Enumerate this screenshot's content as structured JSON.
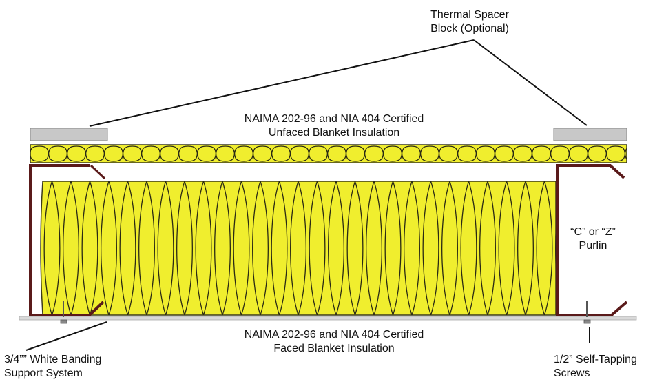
{
  "labels": {
    "thermal_spacer": [
      "Thermal Spacer",
      "Block (Optional)"
    ],
    "unfaced_blanket": [
      "NAIMA 202-96 and NIA 404 Certified",
      "Unfaced Blanket Insulation"
    ],
    "purlin": [
      "“C” or “Z”",
      "Purlin"
    ],
    "faced_blanket": [
      "NAIMA 202-96 and NIA 404 Certified",
      "Faced Blanket Insulation"
    ],
    "banding": [
      "3/4”” White Banding",
      "Support System"
    ],
    "screws": [
      "1/2” Self-Tapping",
      "Screws"
    ]
  },
  "colors": {
    "insulation_fill": "#f0ee2e",
    "insulation_stroke": "#3a3a1a",
    "purlin": "#5a1a1a",
    "spacer": "#c8c8c8",
    "panel": "#d9d9d9"
  }
}
